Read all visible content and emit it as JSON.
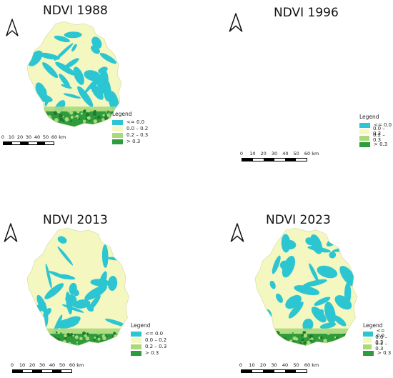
{
  "colors": {
    "water": "#2cc6d3",
    "low": "#f5f7c0",
    "mid": "#a9d97c",
    "high": "#2e9b3c",
    "highDark": "#1f7a2d"
  },
  "icons": {
    "north": "north-arrow-icon"
  },
  "legend": {
    "title": "Legend",
    "items": [
      {
        "label": "<= 0.0",
        "color": "#2cc6d3"
      },
      {
        "label": "0.0 – 0.2",
        "color": "#f5f7c0"
      },
      {
        "label": "0.2 – 0.3",
        "color": "#a9d97c"
      },
      {
        "label": "> 0.3",
        "color": "#2e9b3c"
      }
    ]
  },
  "scalebar": {
    "ticks": [
      "0",
      "10",
      "20",
      "30",
      "40",
      "50",
      "60 km"
    ]
  },
  "panels": [
    {
      "title": "NDVI 1988"
    },
    {
      "title": "NDVI 1996"
    },
    {
      "title": "NDVI 2013"
    },
    {
      "title": "NDVI 2023"
    }
  ]
}
